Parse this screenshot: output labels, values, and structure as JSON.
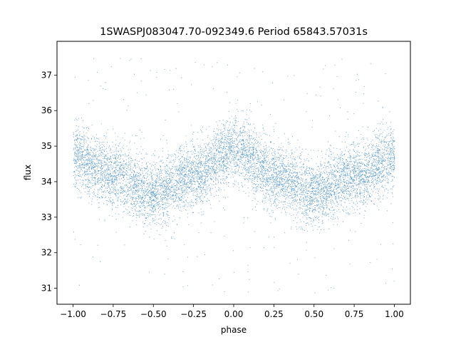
{
  "chart_data": {
    "type": "scatter",
    "title": "1SWASPJ083047.70-092349.6 Period 65843.57031s",
    "xlabel": "phase",
    "ylabel": "flux",
    "xlim": [
      -1.1,
      1.1
    ],
    "ylim": [
      30.55,
      37.95
    ],
    "x_ticks": [
      -1.0,
      -0.75,
      -0.5,
      -0.25,
      0.0,
      0.25,
      0.5,
      0.75,
      1.0
    ],
    "x_tick_labels": [
      "−1.00",
      "−0.75",
      "−0.50",
      "−0.25",
      "0.00",
      "0.25",
      "0.50",
      "0.75",
      "1.00"
    ],
    "y_ticks": [
      31,
      32,
      33,
      34,
      35,
      36,
      37
    ],
    "y_tick_labels": [
      "31",
      "32",
      "33",
      "34",
      "35",
      "36",
      "37"
    ],
    "grid": false,
    "point_color": "#1f77b4",
    "series": [
      {
        "phase_range": [
          -1.0,
          1.0
        ],
        "mean_flux_profile": [
          {
            "phase": -1.0,
            "flux": 34.7
          },
          {
            "phase": -0.75,
            "flux": 34.2
          },
          {
            "phase": -0.5,
            "flux": 33.7
          },
          {
            "phase": -0.25,
            "flux": 34.2
          },
          {
            "phase": 0.0,
            "flux": 34.9
          },
          {
            "phase": 0.25,
            "flux": 34.2
          },
          {
            "phase": 0.5,
            "flux": 33.7
          },
          {
            "phase": 0.75,
            "flux": 34.2
          },
          {
            "phase": 1.0,
            "flux": 34.7
          }
        ],
        "typical_scatter": 0.45,
        "outlier_flux_range": [
          30.85,
          37.6
        ]
      }
    ]
  }
}
